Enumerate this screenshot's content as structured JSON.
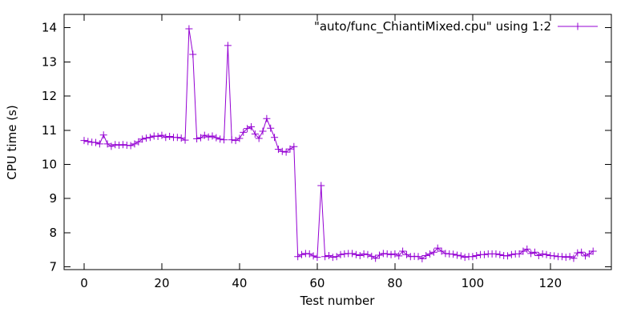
{
  "figure": {
    "background": "#ffffff",
    "text_color": "#000000",
    "border_color": "#000000"
  },
  "chart_data": {
    "type": "line",
    "title": "",
    "xlabel": "Test number",
    "ylabel": "CPU time (s)",
    "legend": {
      "label": "\"auto/func_ChiantiMixed.cpu\" using 1:2",
      "position": "top-right-inside",
      "marker": "plus"
    },
    "series_name": "auto/func_ChiantiMixed.cpu",
    "series_color": "#9400d3",
    "marker_style": "plus",
    "grid": false,
    "xlim": [
      -5.15,
      135.7
    ],
    "ylim": [
      6.92,
      14.39
    ],
    "x_ticks": [
      0,
      20,
      40,
      60,
      80,
      100,
      120
    ],
    "y_ticks": [
      7,
      8,
      9,
      10,
      11,
      12,
      13,
      14
    ],
    "x": [
      0,
      1,
      2,
      3,
      4,
      5,
      6,
      7,
      8,
      9,
      10,
      11,
      12,
      13,
      14,
      15,
      16,
      17,
      18,
      19,
      20,
      21,
      22,
      23,
      24,
      25,
      26,
      27,
      28,
      29,
      30,
      31,
      32,
      33,
      34,
      35,
      36,
      37,
      38,
      39,
      40,
      41,
      42,
      43,
      44,
      45,
      46,
      47,
      48,
      49,
      50,
      51,
      52,
      53,
      54,
      55,
      56,
      57,
      58,
      59,
      60,
      61,
      62,
      63,
      64,
      65,
      66,
      67,
      68,
      69,
      70,
      71,
      72,
      73,
      74,
      75,
      76,
      77,
      78,
      79,
      80,
      81,
      82,
      83,
      84,
      85,
      86,
      87,
      88,
      89,
      90,
      91,
      92,
      93,
      94,
      95,
      96,
      97,
      98,
      99,
      100,
      101,
      102,
      103,
      104,
      105,
      106,
      107,
      108,
      109,
      110,
      111,
      112,
      113,
      114,
      115,
      116,
      117,
      118,
      119,
      120,
      121,
      122,
      123,
      124,
      125,
      126,
      127,
      128,
      129,
      130,
      131
    ],
    "y": [
      10.7,
      10.67,
      10.65,
      10.64,
      10.6,
      10.86,
      10.6,
      10.53,
      10.58,
      10.56,
      10.58,
      10.56,
      10.55,
      10.6,
      10.66,
      10.74,
      10.77,
      10.79,
      10.83,
      10.82,
      10.85,
      10.79,
      10.82,
      10.79,
      10.79,
      10.77,
      10.71,
      13.97,
      13.22,
      10.75,
      10.78,
      10.85,
      10.8,
      10.83,
      10.78,
      10.74,
      10.72,
      13.48,
      10.72,
      10.7,
      10.76,
      10.94,
      11.05,
      11.1,
      10.89,
      10.76,
      10.97,
      11.34,
      11.06,
      10.79,
      10.44,
      10.38,
      10.36,
      10.45,
      10.52,
      7.3,
      7.36,
      7.39,
      7.38,
      7.32,
      7.28,
      9.38,
      7.3,
      7.33,
      7.28,
      7.3,
      7.36,
      7.38,
      7.39,
      7.39,
      7.36,
      7.33,
      7.38,
      7.36,
      7.31,
      7.25,
      7.34,
      7.39,
      7.38,
      7.36,
      7.38,
      7.32,
      7.46,
      7.36,
      7.3,
      7.31,
      7.3,
      7.24,
      7.33,
      7.38,
      7.43,
      7.55,
      7.46,
      7.39,
      7.38,
      7.37,
      7.34,
      7.32,
      7.28,
      7.3,
      7.3,
      7.33,
      7.36,
      7.36,
      7.38,
      7.38,
      7.38,
      7.36,
      7.33,
      7.32,
      7.36,
      7.38,
      7.38,
      7.46,
      7.52,
      7.39,
      7.43,
      7.33,
      7.38,
      7.36,
      7.33,
      7.32,
      7.3,
      7.3,
      7.28,
      7.3,
      7.25,
      7.41,
      7.43,
      7.32,
      7.38,
      7.46
    ]
  }
}
